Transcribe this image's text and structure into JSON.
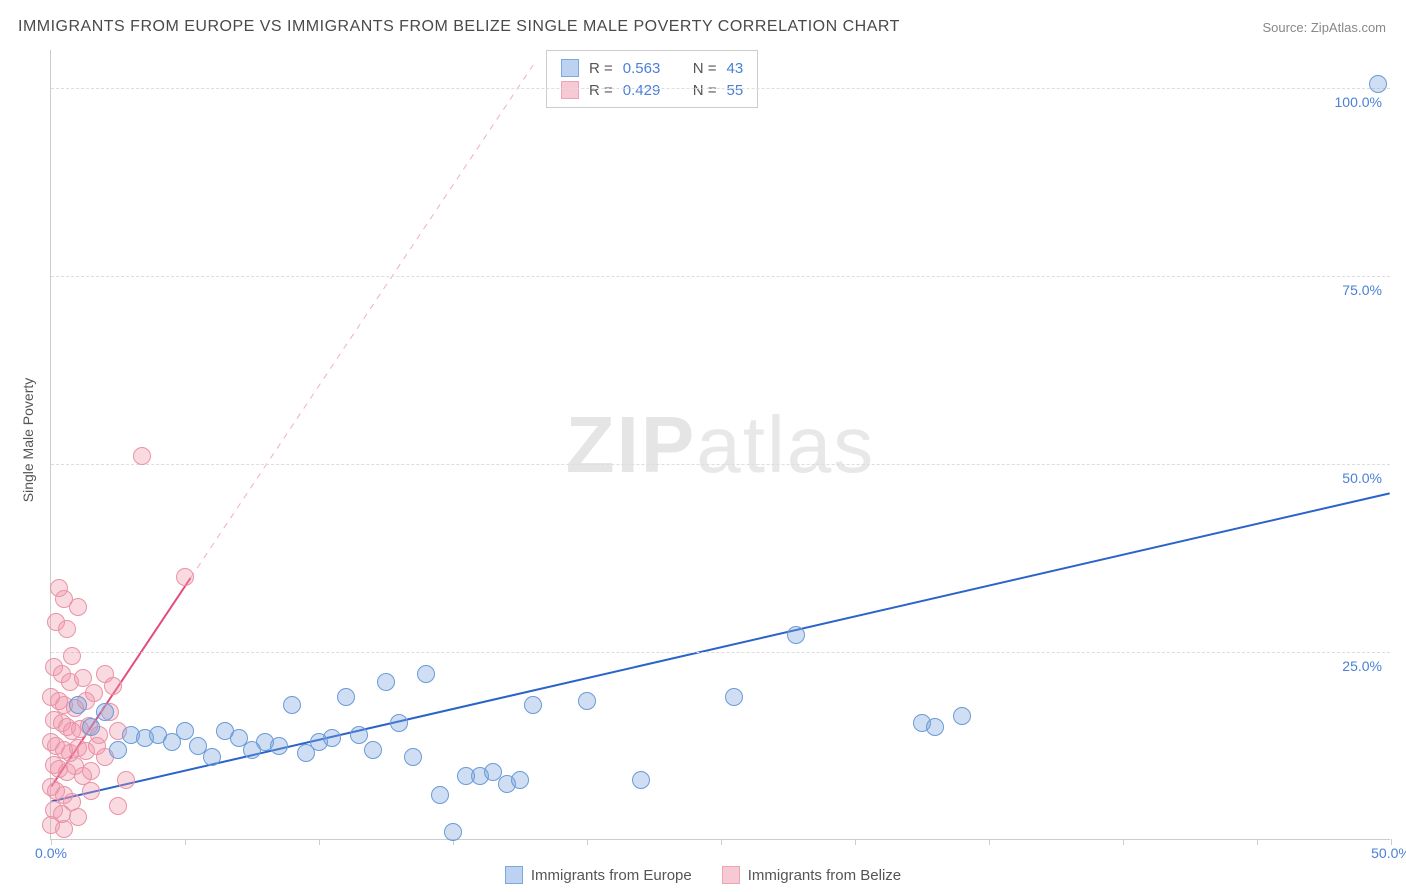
{
  "title": "IMMIGRANTS FROM EUROPE VS IMMIGRANTS FROM BELIZE SINGLE MALE POVERTY CORRELATION CHART",
  "source": "Source: ZipAtlas.com",
  "ylabel": "Single Male Poverty",
  "watermark_a": "ZIP",
  "watermark_b": "atlas",
  "chart": {
    "type": "scatter",
    "xlim": [
      0,
      50
    ],
    "ylim": [
      0,
      105
    ],
    "x_ticks": [
      0,
      5,
      10,
      15,
      20,
      25,
      30,
      35,
      40,
      45,
      50
    ],
    "x_tick_labels": {
      "0": "0.0%",
      "50": "50.0%"
    },
    "y_ticks": [
      25,
      50,
      75,
      100
    ],
    "y_tick_labels": {
      "25": "25.0%",
      "50": "50.0%",
      "75": "75.0%",
      "100": "100.0%"
    },
    "background_color": "#ffffff",
    "grid_color": "#dddddd",
    "axis_color": "#cccccc",
    "tick_label_color": "#4a80d6"
  },
  "series": [
    {
      "name": "Immigrants from Europe",
      "color_fill": "rgba(120,160,220,0.35)",
      "color_stroke": "#6a9bd8",
      "swatch_fill": "#bcd2f0",
      "swatch_border": "#7aa8e0",
      "marker_radius": 9,
      "R": "0.563",
      "N": "43",
      "trend": {
        "x1": 0,
        "y1": 5,
        "x2": 50,
        "y2": 46,
        "solid_until_x": 50,
        "color": "#2a63c9",
        "width": 2
      },
      "points": [
        [
          49.5,
          100.5
        ],
        [
          27.8,
          27.2
        ],
        [
          32.5,
          15.5
        ],
        [
          33.0,
          15.0
        ],
        [
          34.0,
          16.5
        ],
        [
          20.0,
          18.5
        ],
        [
          22.0,
          8.0
        ],
        [
          25.5,
          19.0
        ],
        [
          16.0,
          8.5
        ],
        [
          16.5,
          9.0
        ],
        [
          17.0,
          7.5
        ],
        [
          17.5,
          8.0
        ],
        [
          18.0,
          18.0
        ],
        [
          14.0,
          22.0
        ],
        [
          14.5,
          6.0
        ],
        [
          15.0,
          1.0
        ],
        [
          15.5,
          8.5
        ],
        [
          12.0,
          12.0
        ],
        [
          12.5,
          21.0
        ],
        [
          13.0,
          15.5
        ],
        [
          13.5,
          11.0
        ],
        [
          10.0,
          13.0
        ],
        [
          10.5,
          13.5
        ],
        [
          11.0,
          19.0
        ],
        [
          11.5,
          14.0
        ],
        [
          8.0,
          13.0
        ],
        [
          8.5,
          12.5
        ],
        [
          9.0,
          18.0
        ],
        [
          9.5,
          11.5
        ],
        [
          6.0,
          11.0
        ],
        [
          6.5,
          14.5
        ],
        [
          7.0,
          13.5
        ],
        [
          7.5,
          12.0
        ],
        [
          4.0,
          14.0
        ],
        [
          4.5,
          13.0
        ],
        [
          5.0,
          14.5
        ],
        [
          5.5,
          12.5
        ],
        [
          2.5,
          12.0
        ],
        [
          3.0,
          14.0
        ],
        [
          3.5,
          13.5
        ],
        [
          1.5,
          15.0
        ],
        [
          2.0,
          17.0
        ],
        [
          1.0,
          18.0
        ]
      ]
    },
    {
      "name": "Immigrants from Belize",
      "color_fill": "rgba(240,150,170,0.35)",
      "color_stroke": "#e993a8",
      "swatch_fill": "#f7c9d4",
      "swatch_border": "#eca5b8",
      "marker_radius": 9,
      "R": "0.429",
      "N": "55",
      "trend": {
        "x1": 0,
        "y1": 7,
        "x2": 18,
        "y2": 103,
        "solid_until_x": 5.2,
        "color": "#e34b7a",
        "width": 2
      },
      "points": [
        [
          3.4,
          51.0
        ],
        [
          5.0,
          35.0
        ],
        [
          0.3,
          33.5
        ],
        [
          0.5,
          32.0
        ],
        [
          1.0,
          31.0
        ],
        [
          0.2,
          29.0
        ],
        [
          0.6,
          28.0
        ],
        [
          0.8,
          24.5
        ],
        [
          0.1,
          23.0
        ],
        [
          0.4,
          22.0
        ],
        [
          0.7,
          21.0
        ],
        [
          1.2,
          21.5
        ],
        [
          2.0,
          22.0
        ],
        [
          2.3,
          20.5
        ],
        [
          0.0,
          19.0
        ],
        [
          0.3,
          18.5
        ],
        [
          0.5,
          18.0
        ],
        [
          0.9,
          17.5
        ],
        [
          1.3,
          18.5
        ],
        [
          1.6,
          19.5
        ],
        [
          2.2,
          17.0
        ],
        [
          0.1,
          16.0
        ],
        [
          0.4,
          15.5
        ],
        [
          0.6,
          15.0
        ],
        [
          0.8,
          14.5
        ],
        [
          1.1,
          14.8
        ],
        [
          1.4,
          15.2
        ],
        [
          1.8,
          14.0
        ],
        [
          2.5,
          14.5
        ],
        [
          0.0,
          13.0
        ],
        [
          0.2,
          12.5
        ],
        [
          0.5,
          12.0
        ],
        [
          0.7,
          11.5
        ],
        [
          1.0,
          12.2
        ],
        [
          1.3,
          11.8
        ],
        [
          1.7,
          12.5
        ],
        [
          2.0,
          11.0
        ],
        [
          0.1,
          10.0
        ],
        [
          0.3,
          9.5
        ],
        [
          0.6,
          9.0
        ],
        [
          0.9,
          9.8
        ],
        [
          1.2,
          8.5
        ],
        [
          1.5,
          9.2
        ],
        [
          2.8,
          8.0
        ],
        [
          0.0,
          7.0
        ],
        [
          0.2,
          6.5
        ],
        [
          0.5,
          6.0
        ],
        [
          0.8,
          5.0
        ],
        [
          1.5,
          6.5
        ],
        [
          0.1,
          4.0
        ],
        [
          0.4,
          3.5
        ],
        [
          1.0,
          3.0
        ],
        [
          2.5,
          4.5
        ],
        [
          0.5,
          1.5
        ],
        [
          0.0,
          2.0
        ]
      ]
    }
  ],
  "legend_top": {
    "r_label": "R =",
    "n_label": "N ="
  },
  "legend_bottom": {
    "items": [
      "Immigrants from Europe",
      "Immigrants from Belize"
    ]
  }
}
